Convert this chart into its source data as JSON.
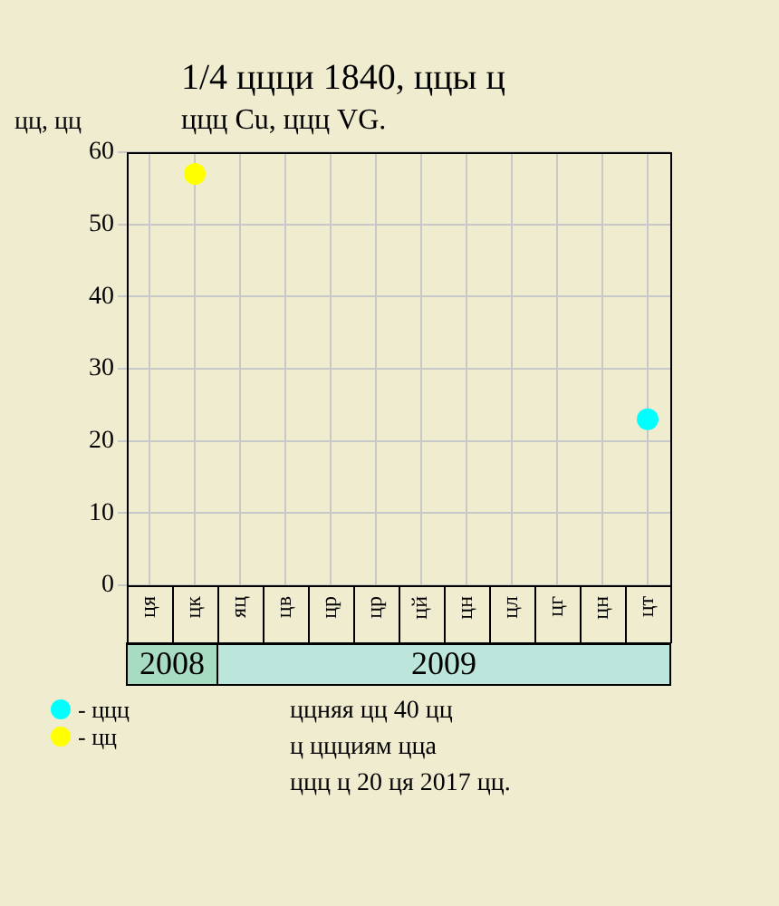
{
  "chart_data": {
    "type": "scatter",
    "title": "1/4 ццци 1840, ццы ц",
    "subtitle": "ццц Cu, ццц VG.",
    "ylabel": "цц, цц",
    "categories": [
      "ця",
      "цк",
      "яц",
      "цв",
      "цр",
      "цр",
      "цй",
      "цн",
      "цл",
      "цг",
      "цн",
      "цт"
    ],
    "series": [
      {
        "name": "- ццц",
        "color": "#00ffff",
        "values": [
          null,
          null,
          null,
          null,
          null,
          null,
          null,
          null,
          null,
          null,
          null,
          23
        ]
      },
      {
        "name": "- цц",
        "color": "#ffff00",
        "values": [
          null,
          57,
          null,
          null,
          null,
          null,
          null,
          null,
          null,
          null,
          null,
          null
        ]
      }
    ],
    "ylim": [
      0,
      60
    ],
    "yticks": [
      0,
      10,
      20,
      30,
      40,
      50,
      60
    ],
    "grid": true,
    "legend": "bottom left",
    "marker": "circle",
    "annotations": [
      "2008",
      "2009",
      "ццняя цц 40 цц",
      "ц ццциям цца",
      "ццц ц 20 ця 2017 цц."
    ]
  }
}
